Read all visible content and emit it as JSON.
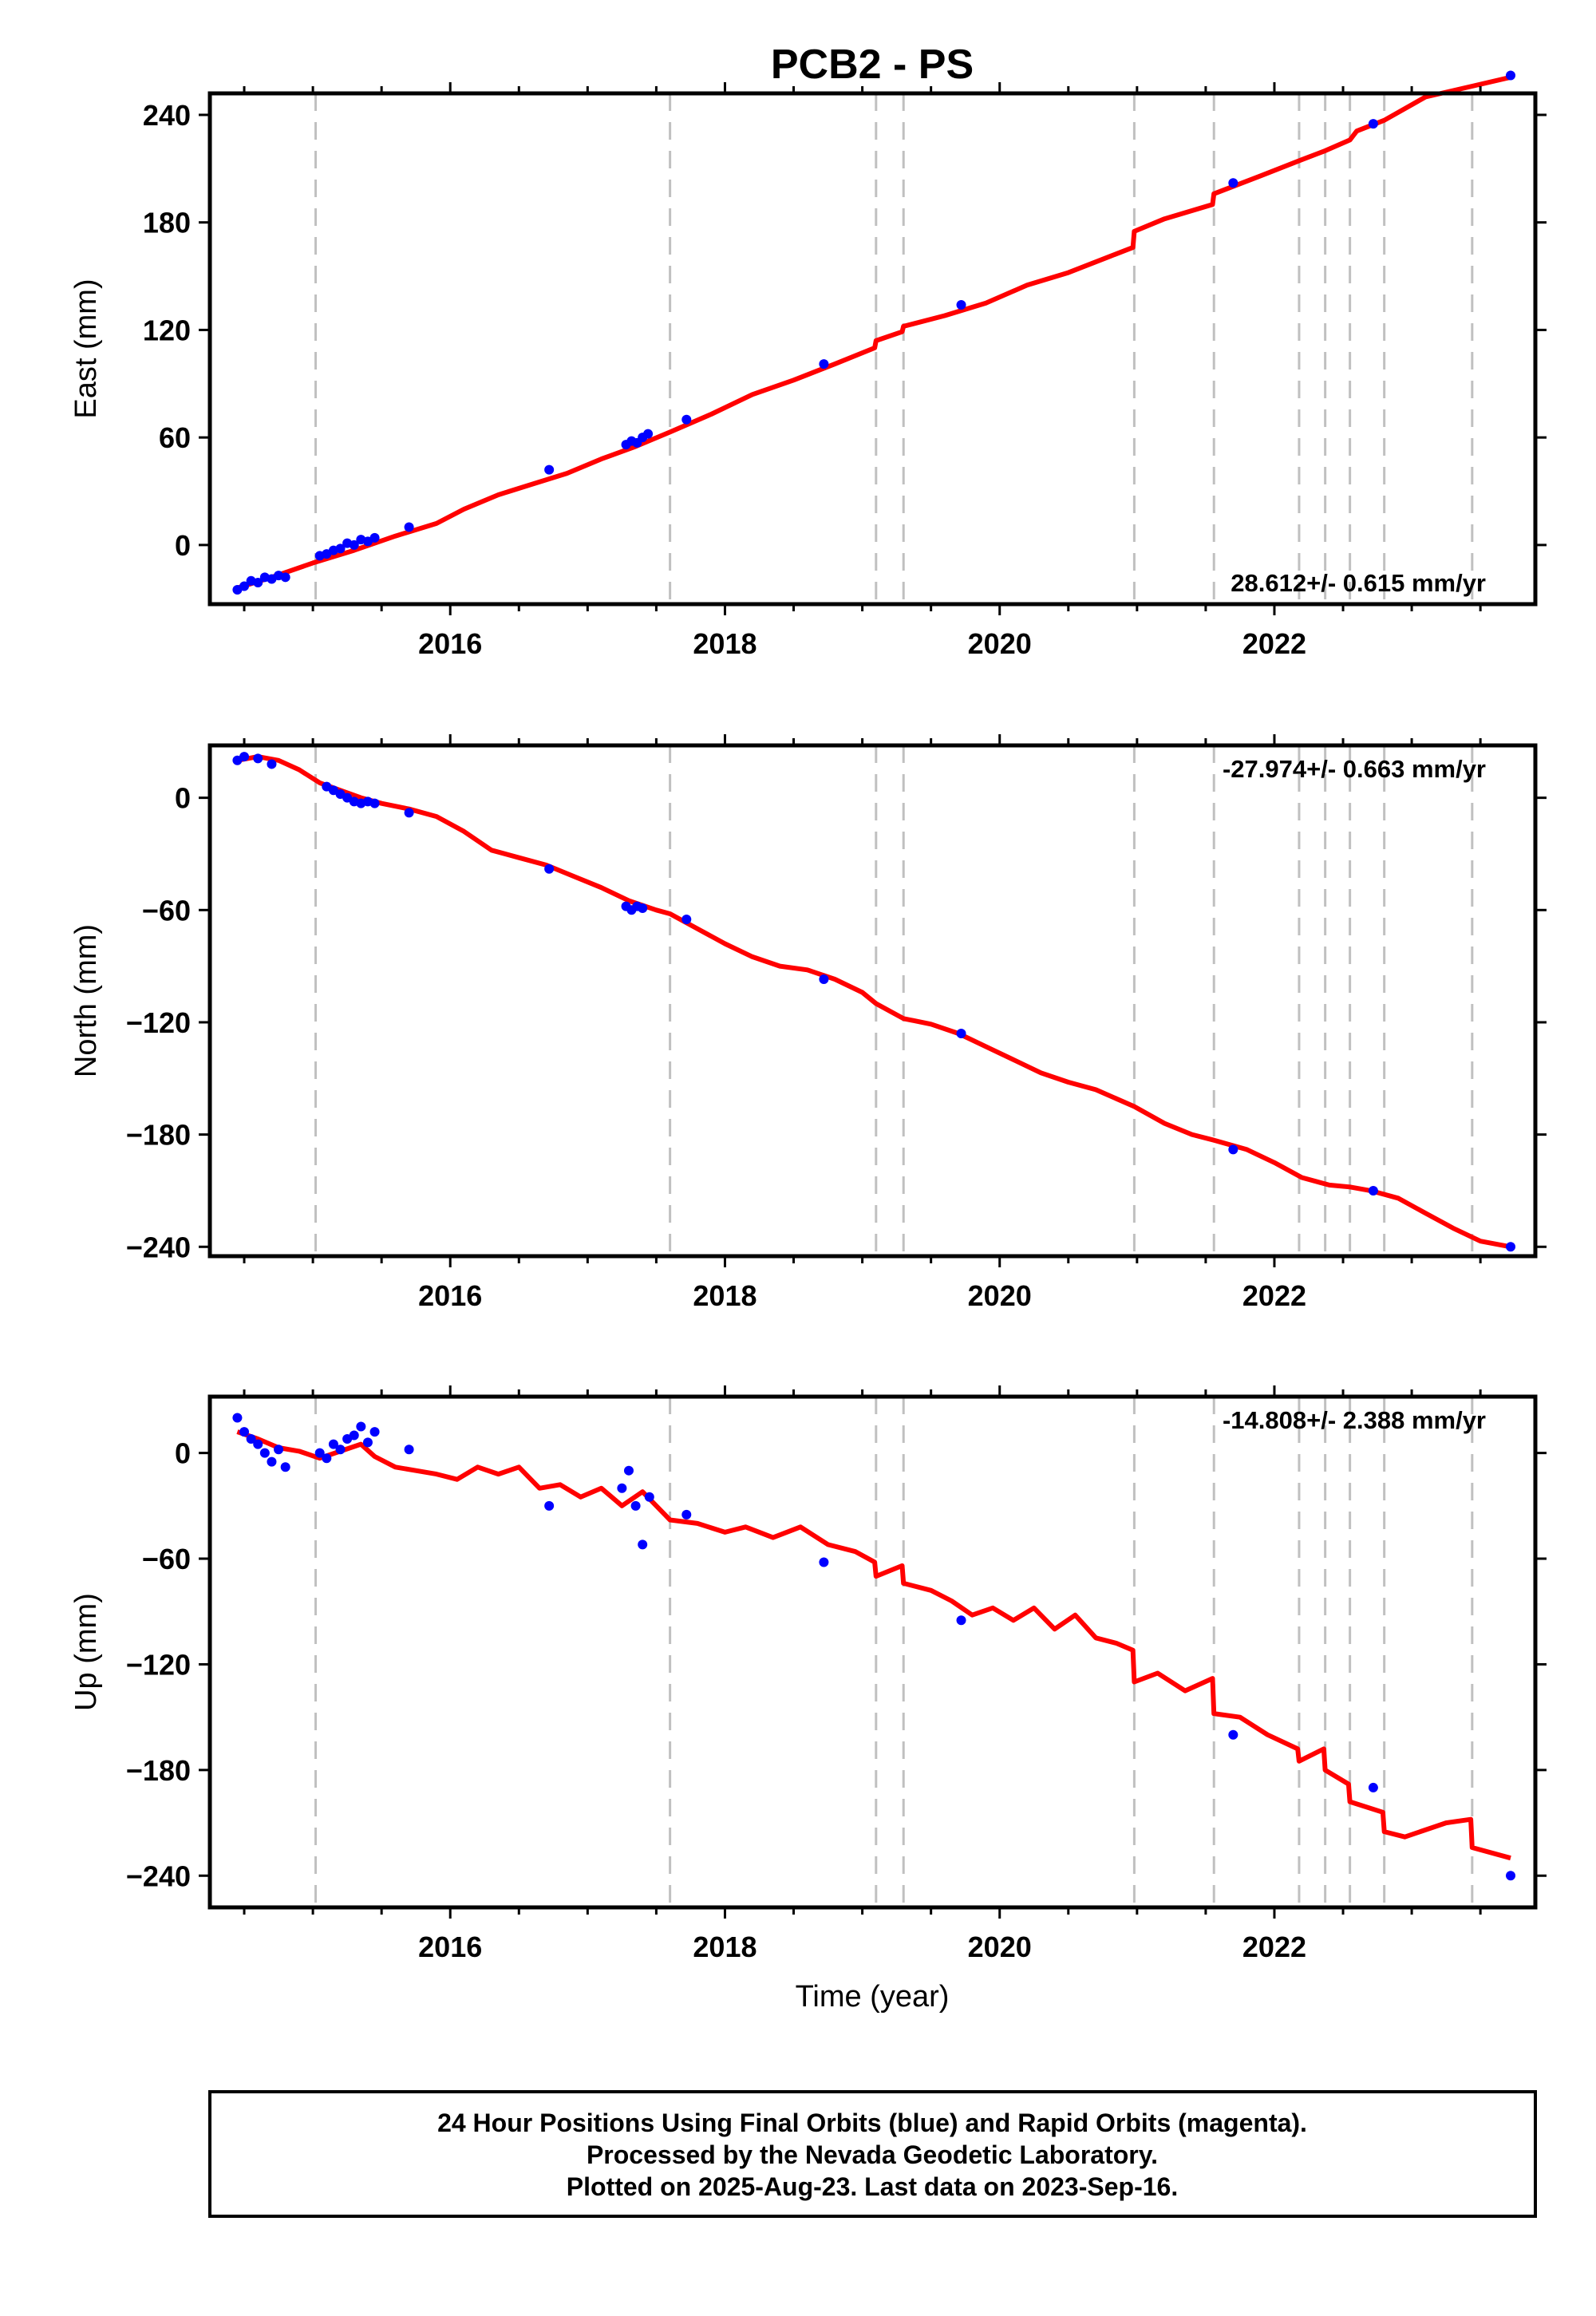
{
  "title": "PCB2 - PS",
  "xlabel": "Time (year)",
  "footer": {
    "line1": "24 Hour Positions Using Final Orbits (blue) and Rapid Orbits (magenta).",
    "line2": "Processed by the Nevada Geodetic Laboratory.",
    "line3": "Plotted on 2025-Aug-23. Last data on 2023-Sep-16."
  },
  "colors": {
    "data": "#0000ff",
    "model": "#ff0000",
    "breaks": "#c0c0c0",
    "axes": "#000000"
  },
  "chart_data": [
    {
      "type": "scatter",
      "ylabel": "East (mm)",
      "rate": "28.612+/- 0.615 mm/yr",
      "rate_position": "bottom-right",
      "xlim": [
        2014.25,
        2023.9
      ],
      "ylim": [
        -33,
        252
      ],
      "yticks": [
        0,
        60,
        120,
        180,
        240
      ],
      "xticks": [
        2016,
        2018,
        2020,
        2022
      ],
      "equipment_breaks": [
        2015.02,
        2017.6,
        2019.1,
        2019.3,
        2020.98,
        2021.56,
        2022.18,
        2022.37,
        2022.55,
        2022.8,
        2023.44
      ],
      "model": {
        "x": [
          2014.45,
          2014.7,
          2015.0,
          2015.3,
          2015.6,
          2015.9,
          2016.1,
          2016.35,
          2016.6,
          2016.85,
          2017.1,
          2017.35,
          2017.6,
          2017.9,
          2018.2,
          2018.5,
          2018.8,
          2019.09,
          2019.1,
          2019.29,
          2019.3,
          2019.6,
          2019.9,
          2020.2,
          2020.5,
          2020.8,
          2020.97,
          2020.98,
          2021.2,
          2021.55,
          2021.56,
          2021.9,
          2022.2,
          2022.37,
          2022.55,
          2022.6,
          2022.8,
          2023.1,
          2023.44,
          2023.72
        ],
        "y": [
          -24,
          -18,
          -10,
          -3,
          5,
          12,
          20,
          28,
          34,
          40,
          48,
          55,
          63,
          73,
          84,
          92,
          101,
          110,
          114,
          119,
          122,
          128,
          135,
          145,
          152,
          161,
          166,
          175,
          182,
          190,
          196,
          206,
          215,
          220,
          226,
          231,
          237,
          250,
          256,
          261
        ]
      },
      "points": {
        "x": [
          2014.45,
          2014.5,
          2014.55,
          2014.6,
          2014.65,
          2014.7,
          2014.75,
          2014.8,
          2015.05,
          2015.1,
          2015.15,
          2015.2,
          2015.25,
          2015.3,
          2015.35,
          2015.4,
          2015.45,
          2015.7,
          2016.72,
          2017.28,
          2017.32,
          2017.36,
          2017.4,
          2017.44,
          2017.72,
          2018.72,
          2019.72,
          2021.7,
          2022.72,
          2023.72
        ],
        "y": [
          -25,
          -23,
          -20,
          -21,
          -18,
          -19,
          -17,
          -18,
          -6,
          -5,
          -3,
          -2,
          1,
          0,
          3,
          2,
          4,
          10,
          42,
          56,
          58,
          57,
          60,
          62,
          70,
          101,
          134,
          202,
          235,
          262
        ]
      }
    },
    {
      "type": "scatter",
      "ylabel": "North (mm)",
      "rate": "-27.974+/- 0.663 mm/yr",
      "rate_position": "top-right",
      "xlim": [
        2014.25,
        2023.9
      ],
      "ylim": [
        -245,
        28
      ],
      "yticks": [
        0,
        -60,
        -120,
        -180,
        -240
      ],
      "xticks": [
        2016,
        2018,
        2020,
        2022
      ],
      "equipment_breaks": [
        2015.02,
        2017.6,
        2019.1,
        2019.3,
        2020.98,
        2021.56,
        2022.18,
        2022.37,
        2022.55,
        2022.8,
        2023.44
      ],
      "model": {
        "x": [
          2014.45,
          2014.6,
          2014.75,
          2014.9,
          2015.05,
          2015.2,
          2015.35,
          2015.5,
          2015.7,
          2015.9,
          2016.1,
          2016.3,
          2016.5,
          2016.7,
          2016.9,
          2017.1,
          2017.3,
          2017.5,
          2017.6,
          2017.8,
          2018.0,
          2018.2,
          2018.4,
          2018.6,
          2018.8,
          2019.0,
          2019.1,
          2019.3,
          2019.5,
          2019.7,
          2019.9,
          2020.1,
          2020.3,
          2020.5,
          2020.7,
          2020.98,
          2021.2,
          2021.4,
          2021.56,
          2021.8,
          2022.0,
          2022.2,
          2022.4,
          2022.55,
          2022.7,
          2022.9,
          2023.1,
          2023.3,
          2023.5,
          2023.72
        ],
        "y": [
          20,
          22,
          20,
          15,
          8,
          4,
          0,
          -3,
          -6,
          -10,
          -18,
          -28,
          -32,
          -36,
          -42,
          -48,
          -55,
          -60,
          -62,
          -70,
          -78,
          -85,
          -90,
          -92,
          -97,
          -104,
          -110,
          -118,
          -121,
          -126,
          -133,
          -140,
          -147,
          -152,
          -156,
          -165,
          -174,
          -180,
          -183,
          -188,
          -195,
          -203,
          -207,
          -208,
          -210,
          -214,
          -222,
          -230,
          -237,
          -240
        ]
      },
      "points": {
        "x": [
          2014.45,
          2014.5,
          2014.6,
          2014.7,
          2015.1,
          2015.15,
          2015.2,
          2015.25,
          2015.3,
          2015.35,
          2015.4,
          2015.45,
          2015.7,
          2016.72,
          2017.28,
          2017.32,
          2017.36,
          2017.4,
          2017.72,
          2018.72,
          2019.72,
          2021.7,
          2022.72,
          2023.72
        ],
        "y": [
          20,
          22,
          21,
          18,
          6,
          4,
          2,
          0,
          -2,
          -3,
          -2,
          -3,
          -8,
          -38,
          -58,
          -60,
          -58,
          -59,
          -65,
          -97,
          -126,
          -188,
          -210,
          -240
        ]
      }
    },
    {
      "type": "scatter",
      "ylabel": "Up (mm)",
      "rate": "-14.808+/- 2.388 mm/yr",
      "rate_position": "top-right",
      "xlim": [
        2014.25,
        2023.9
      ],
      "ylim": [
        -258,
        32
      ],
      "yticks": [
        0,
        -60,
        -120,
        -180,
        -240
      ],
      "xticks": [
        2016,
        2018,
        2020,
        2022
      ],
      "equipment_breaks": [
        2015.02,
        2017.6,
        2019.1,
        2019.3,
        2020.98,
        2021.56,
        2022.18,
        2022.37,
        2022.55,
        2022.8,
        2023.44
      ],
      "model": {
        "x": [
          2014.45,
          2014.6,
          2014.75,
          2014.9,
          2015.05,
          2015.2,
          2015.35,
          2015.45,
          2015.6,
          2015.75,
          2015.9,
          2016.05,
          2016.2,
          2016.35,
          2016.5,
          2016.65,
          2016.8,
          2016.95,
          2017.1,
          2017.25,
          2017.4,
          2017.6,
          2017.8,
          2018.0,
          2018.15,
          2018.35,
          2018.55,
          2018.75,
          2018.95,
          2019.09,
          2019.1,
          2019.29,
          2019.3,
          2019.5,
          2019.65,
          2019.8,
          2019.95,
          2020.1,
          2020.25,
          2020.4,
          2020.55,
          2020.7,
          2020.85,
          2020.97,
          2020.98,
          2021.15,
          2021.35,
          2021.55,
          2021.56,
          2021.75,
          2021.95,
          2022.17,
          2022.18,
          2022.36,
          2022.37,
          2022.54,
          2022.55,
          2022.79,
          2022.8,
          2022.95,
          2023.1,
          2023.25,
          2023.43,
          2023.44,
          2023.72
        ],
        "y": [
          12,
          8,
          3,
          1,
          -3,
          1,
          5,
          -2,
          -8,
          -10,
          -12,
          -15,
          -8,
          -12,
          -8,
          -20,
          -18,
          -25,
          -20,
          -30,
          -22,
          -38,
          -40,
          -45,
          -42,
          -48,
          -42,
          -52,
          -56,
          -62,
          -70,
          -64,
          -74,
          -78,
          -84,
          -92,
          -88,
          -95,
          -88,
          -100,
          -92,
          -105,
          -108,
          -112,
          -130,
          -125,
          -135,
          -128,
          -148,
          -150,
          -160,
          -168,
          -175,
          -168,
          -180,
          -188,
          -198,
          -204,
          -215,
          -218,
          -214,
          -210,
          -208,
          -224,
          -230
        ]
      },
      "points": {
        "x": [
          2014.45,
          2014.5,
          2014.55,
          2014.6,
          2014.65,
          2014.7,
          2014.75,
          2014.8,
          2015.05,
          2015.1,
          2015.15,
          2015.2,
          2015.25,
          2015.3,
          2015.35,
          2015.4,
          2015.45,
          2015.7,
          2016.72,
          2017.25,
          2017.3,
          2017.35,
          2017.4,
          2017.45,
          2017.72,
          2018.72,
          2019.72,
          2021.7,
          2022.72,
          2023.72
        ],
        "y": [
          20,
          12,
          8,
          5,
          0,
          -5,
          2,
          -8,
          0,
          -3,
          5,
          2,
          8,
          10,
          15,
          6,
          12,
          2,
          -30,
          -20,
          -10,
          -30,
          -52,
          -25,
          -35,
          -62,
          -95,
          -160,
          -190,
          -240
        ]
      }
    }
  ]
}
